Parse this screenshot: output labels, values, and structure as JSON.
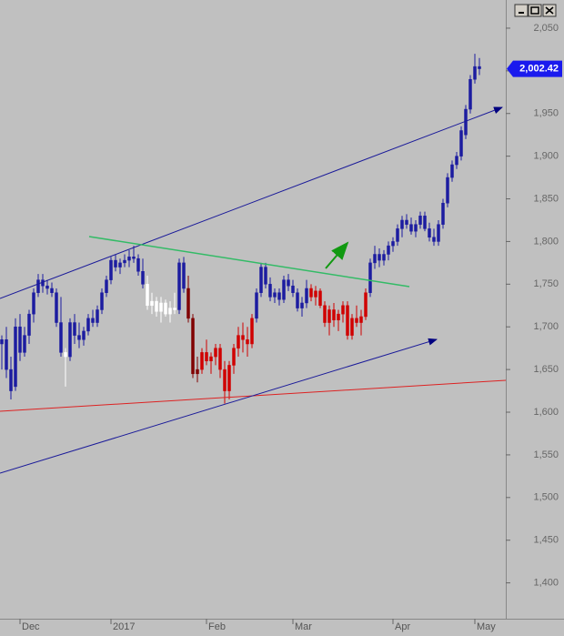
{
  "chart_data": {
    "type": "candlestick",
    "categories": [
      null,
      null,
      null,
      null,
      "Dec",
      null,
      null,
      null,
      null,
      null,
      null,
      null,
      null,
      null,
      null,
      null,
      null,
      null,
      null,
      null,
      null,
      null,
      null,
      null,
      "2017",
      null,
      null,
      null,
      null,
      null,
      null,
      null,
      null,
      null,
      null,
      null,
      null,
      null,
      null,
      null,
      null,
      null,
      null,
      null,
      null,
      "Feb",
      null,
      null,
      null,
      null,
      null,
      null,
      null,
      null,
      null,
      null,
      null,
      null,
      null,
      null,
      null,
      null,
      null,
      null,
      "Mar",
      null,
      null,
      null,
      null,
      null,
      null,
      null,
      null,
      null,
      null,
      null,
      null,
      null,
      null,
      null,
      null,
      null,
      null,
      null,
      null,
      null,
      "Apr",
      null,
      null,
      null,
      null,
      null,
      null,
      null,
      null,
      null,
      null,
      null,
      null,
      null,
      null,
      null,
      null,
      null,
      "May",
      null
    ],
    "open": [
      1680,
      1685,
      1650,
      1630,
      1700,
      1670,
      1690,
      1715,
      1740,
      1755,
      1748,
      1745,
      1740,
      1705,
      1670,
      1665,
      1705,
      1690,
      1685,
      1695,
      1710,
      1705,
      1720,
      1740,
      1755,
      1778,
      1770,
      1775,
      1778,
      1782,
      1780,
      1765,
      1750,
      1725,
      1730,
      1718,
      1728,
      1715,
      1722,
      1720,
      1775,
      1745,
      1710,
      1645,
      1650,
      1670,
      1660,
      1665,
      1675,
      1650,
      1625,
      1655,
      1675,
      1690,
      1685,
      1680,
      1710,
      1740,
      1770,
      1750,
      1735,
      1740,
      1732,
      1755,
      1748,
      1740,
      1722,
      1728,
      1745,
      1735,
      1742,
      1725,
      1705,
      1720,
      1708,
      1715,
      1725,
      1690,
      1710,
      1705,
      1712,
      1740,
      1775,
      1785,
      1778,
      1785,
      1795,
      1800,
      1815,
      1825,
      1820,
      1812,
      1820,
      1830,
      1815,
      1805,
      1800,
      1820,
      1845,
      1875,
      1890,
      1900,
      1925,
      1955,
      1990,
      2005
    ],
    "high": [
      1690,
      1700,
      1665,
      1710,
      1715,
      1700,
      1720,
      1745,
      1762,
      1762,
      1755,
      1752,
      1745,
      1735,
      1675,
      1710,
      1715,
      1705,
      1700,
      1715,
      1720,
      1725,
      1745,
      1760,
      1782,
      1785,
      1780,
      1785,
      1790,
      1795,
      1785,
      1780,
      1760,
      1740,
      1735,
      1735,
      1732,
      1730,
      1740,
      1780,
      1782,
      1760,
      1715,
      1665,
      1675,
      1685,
      1670,
      1680,
      1680,
      1660,
      1660,
      1680,
      1700,
      1705,
      1700,
      1715,
      1745,
      1775,
      1775,
      1758,
      1745,
      1745,
      1760,
      1762,
      1755,
      1745,
      1735,
      1755,
      1750,
      1748,
      1745,
      1730,
      1725,
      1728,
      1720,
      1730,
      1730,
      1715,
      1725,
      1720,
      1745,
      1780,
      1795,
      1792,
      1790,
      1800,
      1805,
      1820,
      1830,
      1832,
      1828,
      1825,
      1835,
      1835,
      1822,
      1815,
      1825,
      1850,
      1880,
      1895,
      1905,
      1935,
      1960,
      1995,
      2020,
      2015
    ],
    "low": [
      1650,
      1640,
      1615,
      1625,
      1660,
      1665,
      1680,
      1705,
      1735,
      1740,
      1738,
      1735,
      1700,
      1665,
      1630,
      1660,
      1680,
      1675,
      1678,
      1690,
      1700,
      1700,
      1715,
      1735,
      1750,
      1765,
      1762,
      1770,
      1770,
      1775,
      1760,
      1745,
      1720,
      1715,
      1712,
      1705,
      1712,
      1705,
      1715,
      1715,
      1740,
      1705,
      1640,
      1635,
      1645,
      1655,
      1645,
      1655,
      1640,
      1610,
      1615,
      1645,
      1665,
      1670,
      1665,
      1675,
      1705,
      1735,
      1745,
      1730,
      1728,
      1725,
      1728,
      1742,
      1735,
      1718,
      1712,
      1722,
      1730,
      1725,
      1722,
      1700,
      1690,
      1700,
      1695,
      1705,
      1685,
      1685,
      1700,
      1690,
      1708,
      1735,
      1768,
      1770,
      1772,
      1778,
      1788,
      1795,
      1805,
      1815,
      1808,
      1805,
      1815,
      1812,
      1800,
      1795,
      1795,
      1815,
      1840,
      1870,
      1885,
      1895,
      1920,
      1950,
      1985,
      1995
    ],
    "close": [
      1685,
      1650,
      1625,
      1700,
      1670,
      1690,
      1715,
      1740,
      1755,
      1748,
      1745,
      1740,
      1705,
      1670,
      1665,
      1705,
      1690,
      1685,
      1695,
      1710,
      1705,
      1720,
      1740,
      1755,
      1778,
      1770,
      1775,
      1778,
      1782,
      1780,
      1765,
      1750,
      1725,
      1730,
      1718,
      1728,
      1715,
      1722,
      1720,
      1775,
      1745,
      1710,
      1645,
      1650,
      1670,
      1660,
      1665,
      1675,
      1650,
      1625,
      1655,
      1675,
      1690,
      1685,
      1680,
      1710,
      1740,
      1770,
      1750,
      1735,
      1740,
      1732,
      1755,
      1748,
      1740,
      1722,
      1728,
      1745,
      1735,
      1742,
      1725,
      1705,
      1720,
      1708,
      1715,
      1725,
      1690,
      1710,
      1705,
      1712,
      1740,
      1775,
      1785,
      1778,
      1785,
      1795,
      1800,
      1815,
      1825,
      1820,
      1812,
      1820,
      1830,
      1815,
      1805,
      1800,
      1820,
      1845,
      1875,
      1890,
      1900,
      1930,
      1955,
      1990,
      2005,
      2002.42
    ],
    "colors": [
      "#1c1ca0",
      "#1c1ca0",
      "#1c1ca0",
      "#1c1ca0",
      "#1c1ca0",
      "#1c1ca0",
      "#1c1ca0",
      "#1c1ca0",
      "#1c1ca0",
      "#1c1ca0",
      "#1c1ca0",
      "#1c1ca0",
      "#1c1ca0",
      "#1c1ca0",
      "#ffffff",
      "#1c1ca0",
      "#1c1ca0",
      "#1c1ca0",
      "#1c1ca0",
      "#1c1ca0",
      "#1c1ca0",
      "#1c1ca0",
      "#1c1ca0",
      "#1c1ca0",
      "#1c1ca0",
      "#1c1ca0",
      "#1c1ca0",
      "#1c1ca0",
      "#1c1ca0",
      "#1c1ca0",
      "#1c1ca0",
      "#1c1ca0",
      "#ffffff",
      "#ffffff",
      "#ffffff",
      "#ffffff",
      "#ffffff",
      "#ffffff",
      "#ffffff",
      "#1c1ca0",
      "#1c1ca0",
      "#800000",
      "#800000",
      "#800000",
      "#d00000",
      "#d00000",
      "#d00000",
      "#d00000",
      "#d00000",
      "#d00000",
      "#d00000",
      "#d00000",
      "#d00000",
      "#d00000",
      "#d00000",
      "#d00000",
      "#1c1ca0",
      "#1c1ca0",
      "#1c1ca0",
      "#1c1ca0",
      "#1c1ca0",
      "#1c1ca0",
      "#1c1ca0",
      "#1c1ca0",
      "#1c1ca0",
      "#1c1ca0",
      "#1c1ca0",
      "#1c1ca0",
      "#d00000",
      "#d00000",
      "#d00000",
      "#d00000",
      "#d00000",
      "#d00000",
      "#d00000",
      "#d00000",
      "#d00000",
      "#d00000",
      "#d00000",
      "#d00000",
      "#d00000",
      "#1c1ca0",
      "#1c1ca0",
      "#1c1ca0",
      "#1c1ca0",
      "#1c1ca0",
      "#1c1ca0",
      "#1c1ca0",
      "#1c1ca0",
      "#1c1ca0",
      "#1c1ca0",
      "#1c1ca0",
      "#1c1ca0",
      "#1c1ca0",
      "#1c1ca0",
      "#1c1ca0",
      "#1c1ca0",
      "#1c1ca0",
      "#1c1ca0",
      "#1c1ca0",
      "#1c1ca0",
      "#1c1ca0",
      "#1c1ca0",
      "#1c1ca0",
      "#1c1ca0",
      "#1c1ca0"
    ],
    "last_label": "2,002.42",
    "ylim": [
      1358,
      2083
    ],
    "yticks": [
      {
        "value": 1400,
        "label": "1,400"
      },
      {
        "value": 1450,
        "label": "1,450"
      },
      {
        "value": 1500,
        "label": "1,500"
      },
      {
        "value": 1550,
        "label": "1,550"
      },
      {
        "value": 1600,
        "label": "1,600"
      },
      {
        "value": 1650,
        "label": "1,650"
      },
      {
        "value": 1700,
        "label": "1,700"
      },
      {
        "value": 1750,
        "label": "1,750"
      },
      {
        "value": 1800,
        "label": "1,800"
      },
      {
        "value": 1850,
        "label": "1,850"
      },
      {
        "value": 1900,
        "label": "1,900"
      },
      {
        "value": 1950,
        "label": "1,950"
      },
      {
        "value": 2000,
        "label": "2,000"
      },
      {
        "value": 2050,
        "label": "2,050"
      }
    ]
  }
}
